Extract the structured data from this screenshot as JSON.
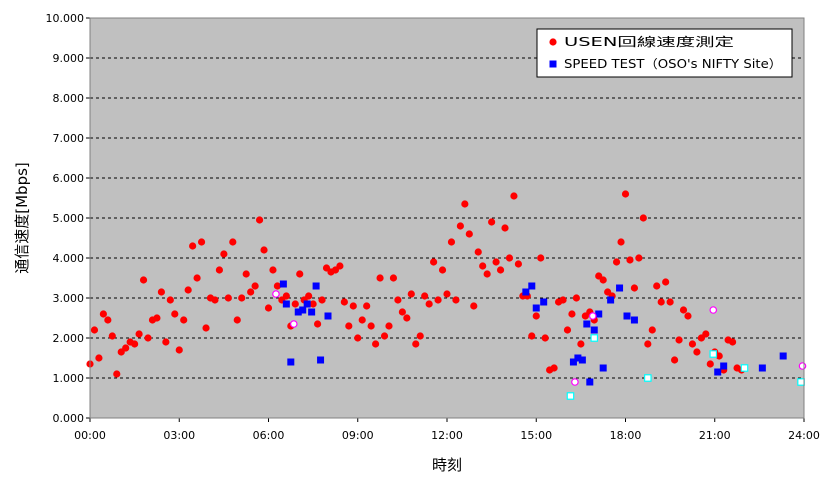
{
  "chart_data": {
    "type": "scatter",
    "xlabel": "時刻",
    "ylabel": "通信速度[Mbps]",
    "xlim": [
      0,
      24
    ],
    "ylim": [
      0,
      10
    ],
    "x_tick_labels": [
      "00:00",
      "03:00",
      "06:00",
      "09:00",
      "12:00",
      "15:00",
      "18:00",
      "21:00",
      "24:00"
    ],
    "y_tick_labels": [
      "0.000",
      "1.000",
      "2.000",
      "3.000",
      "4.000",
      "5.000",
      "6.000",
      "7.000",
      "8.000",
      "9.000",
      "10.000"
    ],
    "grid": "horizontal dashed",
    "legend_position": "top-right",
    "background_color": "#c0c0c0",
    "series": [
      {
        "name": "USEN回線速度測定",
        "marker": "circle",
        "color": "#ff0000",
        "points": [
          [
            0.0,
            1.35
          ],
          [
            0.15,
            2.2
          ],
          [
            0.3,
            1.5
          ],
          [
            0.45,
            2.6
          ],
          [
            0.6,
            2.45
          ],
          [
            0.75,
            2.05
          ],
          [
            0.9,
            1.1
          ],
          [
            1.05,
            1.65
          ],
          [
            1.2,
            1.75
          ],
          [
            1.35,
            1.9
          ],
          [
            1.5,
            1.85
          ],
          [
            1.65,
            2.1
          ],
          [
            1.8,
            3.45
          ],
          [
            1.95,
            2.0
          ],
          [
            2.1,
            2.45
          ],
          [
            2.25,
            2.5
          ],
          [
            2.4,
            3.15
          ],
          [
            2.55,
            1.9
          ],
          [
            2.7,
            2.95
          ],
          [
            2.85,
            2.6
          ],
          [
            3.0,
            1.7
          ],
          [
            3.15,
            2.45
          ],
          [
            3.3,
            3.2
          ],
          [
            3.45,
            4.3
          ],
          [
            3.6,
            3.5
          ],
          [
            3.75,
            4.4
          ],
          [
            3.9,
            2.25
          ],
          [
            4.05,
            3.0
          ],
          [
            4.2,
            2.95
          ],
          [
            4.35,
            3.7
          ],
          [
            4.5,
            4.1
          ],
          [
            4.65,
            3.0
          ],
          [
            4.8,
            4.4
          ],
          [
            4.95,
            2.45
          ],
          [
            5.1,
            3.0
          ],
          [
            5.25,
            3.6
          ],
          [
            5.4,
            3.15
          ],
          [
            5.55,
            3.3
          ],
          [
            5.7,
            4.95
          ],
          [
            5.85,
            4.2
          ],
          [
            6.0,
            2.75
          ],
          [
            6.15,
            3.7
          ],
          [
            6.3,
            3.3
          ],
          [
            6.45,
            2.95
          ],
          [
            6.6,
            3.05
          ],
          [
            6.75,
            2.3
          ],
          [
            6.9,
            2.85
          ],
          [
            7.05,
            3.6
          ],
          [
            7.2,
            2.95
          ],
          [
            7.35,
            3.05
          ],
          [
            7.5,
            2.85
          ],
          [
            7.65,
            2.35
          ],
          [
            7.8,
            2.95
          ],
          [
            7.95,
            3.75
          ],
          [
            8.1,
            3.65
          ],
          [
            8.25,
            3.7
          ],
          [
            8.4,
            3.8
          ],
          [
            8.55,
            2.9
          ],
          [
            8.7,
            2.3
          ],
          [
            8.85,
            2.8
          ],
          [
            9.0,
            2.0
          ],
          [
            9.15,
            2.45
          ],
          [
            9.3,
            2.8
          ],
          [
            9.45,
            2.3
          ],
          [
            9.6,
            1.85
          ],
          [
            9.75,
            3.5
          ],
          [
            9.9,
            2.05
          ],
          [
            10.05,
            2.3
          ],
          [
            10.2,
            3.5
          ],
          [
            10.35,
            2.95
          ],
          [
            10.5,
            2.65
          ],
          [
            10.65,
            2.5
          ],
          [
            10.8,
            3.1
          ],
          [
            10.95,
            1.85
          ],
          [
            11.1,
            2.05
          ],
          [
            11.25,
            3.05
          ],
          [
            11.4,
            2.85
          ],
          [
            11.55,
            3.9
          ],
          [
            11.7,
            2.95
          ],
          [
            11.85,
            3.7
          ],
          [
            12.0,
            3.1
          ],
          [
            12.15,
            4.4
          ],
          [
            12.3,
            2.95
          ],
          [
            12.45,
            4.8
          ],
          [
            12.6,
            5.35
          ],
          [
            12.75,
            4.6
          ],
          [
            12.9,
            2.8
          ],
          [
            13.05,
            4.15
          ],
          [
            13.2,
            3.8
          ],
          [
            13.35,
            3.6
          ],
          [
            13.5,
            4.9
          ],
          [
            13.65,
            3.9
          ],
          [
            13.8,
            3.7
          ],
          [
            13.95,
            4.75
          ],
          [
            14.1,
            4.0
          ],
          [
            14.25,
            5.55
          ],
          [
            14.4,
            3.85
          ],
          [
            14.55,
            3.05
          ],
          [
            14.7,
            3.05
          ],
          [
            14.85,
            2.05
          ],
          [
            15.0,
            2.55
          ],
          [
            15.15,
            4.0
          ],
          [
            15.3,
            2.0
          ],
          [
            15.45,
            1.2
          ],
          [
            15.6,
            1.25
          ],
          [
            15.75,
            2.9
          ],
          [
            15.9,
            2.95
          ],
          [
            16.05,
            2.2
          ],
          [
            16.2,
            2.6
          ],
          [
            16.35,
            3.0
          ],
          [
            16.5,
            1.85
          ],
          [
            16.65,
            2.55
          ],
          [
            16.8,
            2.65
          ],
          [
            16.95,
            2.45
          ],
          [
            17.1,
            3.55
          ],
          [
            17.25,
            3.45
          ],
          [
            17.4,
            3.15
          ],
          [
            17.55,
            3.05
          ],
          [
            17.7,
            3.9
          ],
          [
            17.85,
            4.4
          ],
          [
            18.0,
            5.6
          ],
          [
            18.15,
            3.95
          ],
          [
            18.3,
            3.25
          ],
          [
            18.45,
            4.0
          ],
          [
            18.6,
            5.0
          ],
          [
            18.75,
            1.85
          ],
          [
            18.9,
            2.2
          ],
          [
            19.05,
            3.3
          ],
          [
            19.2,
            2.9
          ],
          [
            19.35,
            3.4
          ],
          [
            19.5,
            2.9
          ],
          [
            19.65,
            1.45
          ],
          [
            19.8,
            1.95
          ],
          [
            19.95,
            2.7
          ],
          [
            20.1,
            2.55
          ],
          [
            20.25,
            1.85
          ],
          [
            20.4,
            1.65
          ],
          [
            20.55,
            2.0
          ],
          [
            20.7,
            2.1
          ],
          [
            20.85,
            1.35
          ],
          [
            21.0,
            1.65
          ],
          [
            21.15,
            1.55
          ],
          [
            21.3,
            1.2
          ],
          [
            21.45,
            1.95
          ],
          [
            21.6,
            1.9
          ],
          [
            21.75,
            1.25
          ],
          [
            21.9,
            1.2
          ]
        ]
      },
      {
        "name": "SPEED TEST（OSO's NIFTY Site）",
        "marker": "square",
        "color": "#0000ff",
        "points": [
          [
            6.5,
            3.35
          ],
          [
            6.6,
            2.85
          ],
          [
            6.75,
            1.4
          ],
          [
            7.0,
            2.65
          ],
          [
            7.15,
            2.7
          ],
          [
            7.3,
            2.85
          ],
          [
            7.45,
            2.65
          ],
          [
            7.6,
            3.3
          ],
          [
            7.75,
            1.45
          ],
          [
            8.0,
            2.55
          ],
          [
            14.65,
            3.15
          ],
          [
            14.85,
            3.3
          ],
          [
            15.0,
            2.75
          ],
          [
            15.25,
            2.9
          ],
          [
            16.25,
            1.4
          ],
          [
            16.4,
            1.5
          ],
          [
            16.55,
            1.45
          ],
          [
            16.7,
            2.35
          ],
          [
            16.8,
            0.9
          ],
          [
            16.95,
            2.2
          ],
          [
            17.1,
            2.6
          ],
          [
            17.25,
            1.25
          ],
          [
            17.5,
            2.95
          ],
          [
            17.8,
            3.25
          ],
          [
            18.05,
            2.55
          ],
          [
            18.3,
            2.45
          ],
          [
            21.1,
            1.15
          ],
          [
            21.3,
            1.3
          ],
          [
            22.6,
            1.25
          ],
          [
            23.3,
            1.55
          ]
        ]
      },
      {
        "marker": "circle-open",
        "color": "#ff00ff",
        "points": [
          [
            6.25,
            3.1
          ],
          [
            6.85,
            2.35
          ],
          [
            16.3,
            0.9
          ],
          [
            16.9,
            2.55
          ],
          [
            20.95,
            2.7
          ],
          [
            23.95,
            1.3
          ]
        ]
      },
      {
        "marker": "square-open",
        "color": "#00ffff",
        "points": [
          [
            16.15,
            0.55
          ],
          [
            16.95,
            2.0
          ],
          [
            18.75,
            1.0
          ],
          [
            20.95,
            1.6
          ],
          [
            22.0,
            1.25
          ],
          [
            23.9,
            0.9
          ]
        ]
      }
    ]
  }
}
